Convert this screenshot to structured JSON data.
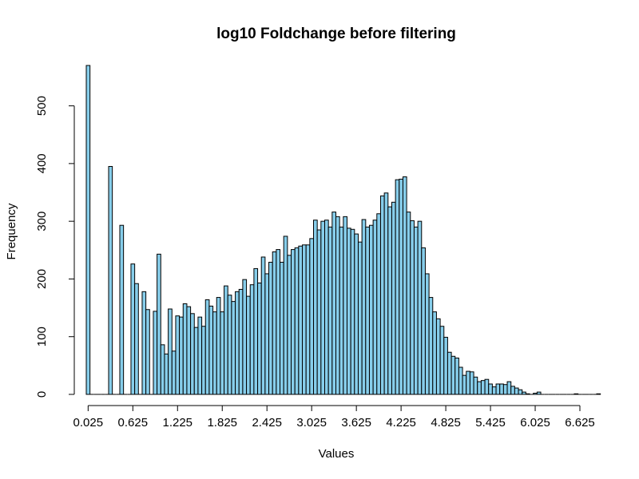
{
  "chart_data": {
    "type": "bar",
    "title": "log10 Foldchange before filtering",
    "xlabel": "Values",
    "ylabel": "Frequency",
    "bar_color": "#87ceeb",
    "border_color": "#000000",
    "bin_width": 0.05,
    "x_start": 0,
    "xlim": [
      0,
      6.7
    ],
    "ylim": [
      0,
      570
    ],
    "x_ticks": [
      0.025,
      0.625,
      1.225,
      1.825,
      2.425,
      3.025,
      3.625,
      4.225,
      4.825,
      5.425,
      6.025,
      6.625
    ],
    "x_tick_labels": [
      "0.025",
      "0.625",
      "1.225",
      "1.825",
      "2.425",
      "3.025",
      "3.625",
      "4.225",
      "4.825",
      "5.425",
      "6.025",
      "6.625"
    ],
    "y_ticks": [
      0,
      100,
      200,
      300,
      400,
      500
    ],
    "y_tick_labels": [
      "0",
      "100",
      "200",
      "300",
      "400",
      "500"
    ],
    "values": [
      570,
      0,
      0,
      0,
      0,
      0,
      395,
      0,
      0,
      293,
      0,
      0,
      226,
      192,
      0,
      178,
      147,
      0,
      144,
      243,
      86,
      70,
      148,
      75,
      136,
      134,
      157,
      152,
      140,
      116,
      134,
      118,
      164,
      153,
      143,
      168,
      143,
      188,
      172,
      161,
      178,
      182,
      199,
      170,
      190,
      218,
      193,
      238,
      209,
      229,
      247,
      251,
      229,
      274,
      241,
      251,
      254,
      257,
      259,
      259,
      270,
      302,
      285,
      300,
      302,
      290,
      316,
      308,
      290,
      308,
      288,
      286,
      278,
      264,
      303,
      290,
      293,
      302,
      313,
      344,
      349,
      325,
      333,
      372,
      373,
      377,
      316,
      301,
      290,
      300,
      254,
      209,
      168,
      143,
      131,
      118,
      99,
      73,
      66,
      63,
      47,
      33,
      40,
      39,
      30,
      22,
      24,
      26,
      18,
      13,
      18,
      18,
      17,
      22,
      14,
      11,
      8,
      4,
      1,
      0,
      2,
      4,
      0,
      0,
      0,
      0,
      0,
      0,
      0,
      0,
      0,
      1,
      0,
      0,
      0,
      0,
      0,
      1
    ]
  }
}
